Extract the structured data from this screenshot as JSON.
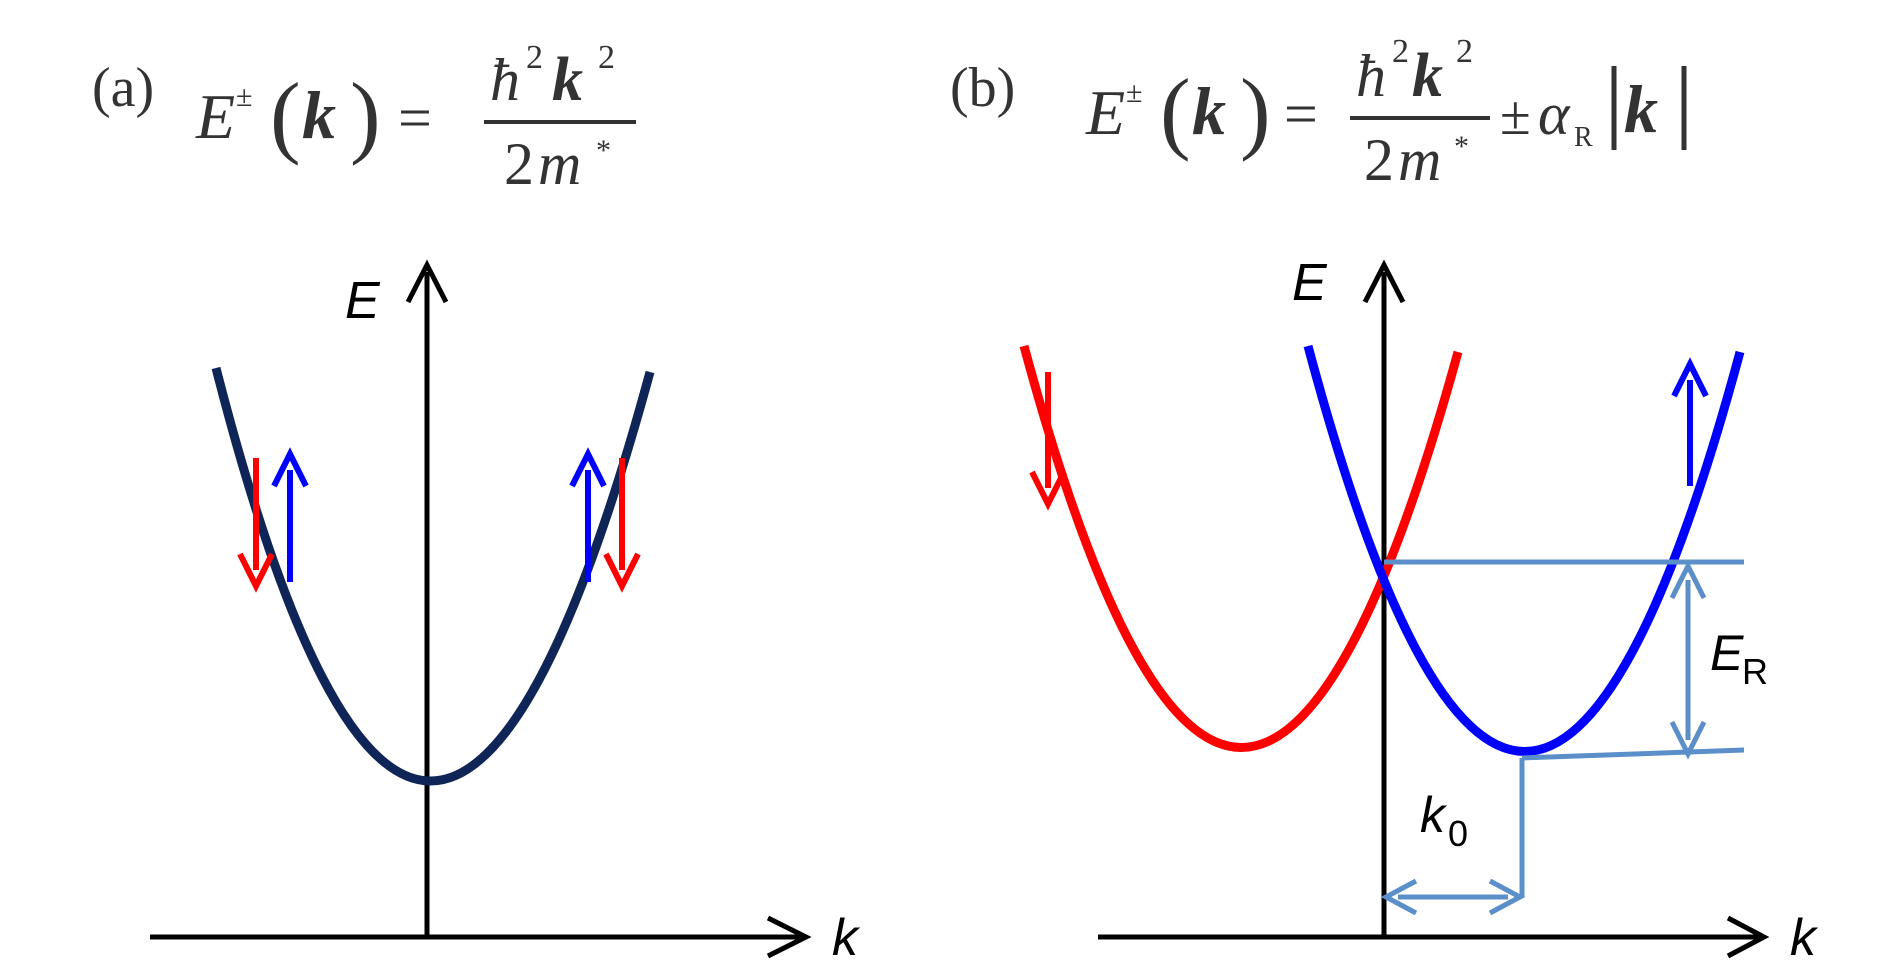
{
  "panel_a": {
    "label": "(a)",
    "formula": {
      "lhs_E": "E",
      "lhs_sup": "±",
      "lhs_arg": "k",
      "equals": "=",
      "num_hbar": "ħ",
      "num_exp1": "2",
      "num_k": "k",
      "num_exp2": "2",
      "den_2": "2",
      "den_m": "m",
      "den_star": "*"
    },
    "axis_labels": {
      "energy": "E",
      "momentum": "k"
    }
  },
  "panel_b": {
    "label": "(b)",
    "formula": {
      "lhs_E": "E",
      "lhs_sup": "±",
      "lhs_arg": "k",
      "equals": "=",
      "num_hbar": "ħ",
      "num_exp1": "2",
      "num_k": "k",
      "num_exp2": "2",
      "den_2": "2",
      "den_m": "m",
      "den_star": "*",
      "pm": "±",
      "alpha": "α",
      "alpha_sub": "R",
      "abs_k": "k"
    },
    "axis_labels": {
      "energy": "E",
      "momentum": "k"
    },
    "annotations": {
      "rashba_energy": "E",
      "rashba_energy_sub": "R",
      "momentum_offset": "k",
      "momentum_offset_sub": "0"
    }
  },
  "colors": {
    "axis": "#000000",
    "parabola_a": "#0f2557",
    "spin_down": "#ff0000",
    "spin_up": "#0000ff",
    "band_red": "#ff0000",
    "band_blue": "#0000ff",
    "annotation": "#5b8fc9",
    "formula": "#333333"
  }
}
